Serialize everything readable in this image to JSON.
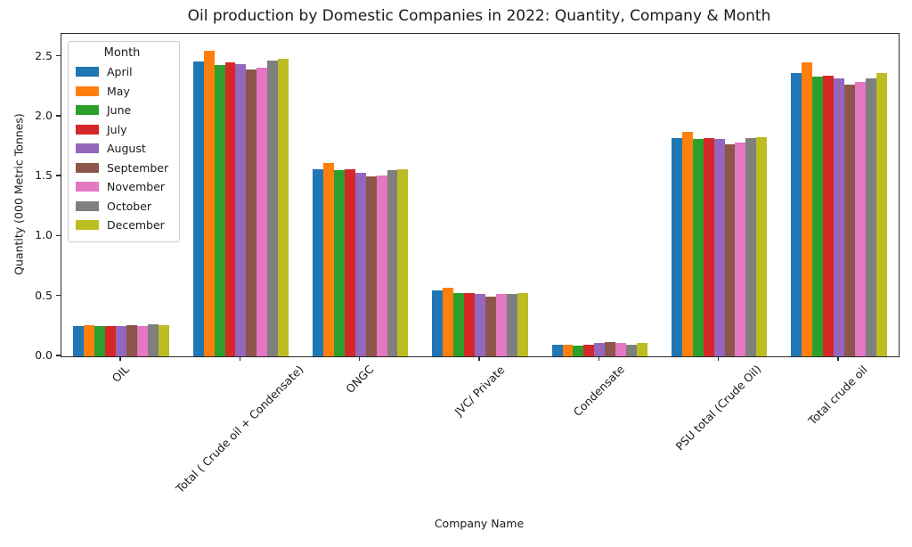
{
  "title": "Oil production by Domestic Companies in 2022: Quantity, Company & Month",
  "chart_data": {
    "type": "bar",
    "title": "Oil production by Domestic Companies in 2022: Quantity, Company & Month",
    "xlabel": "Company Name",
    "ylabel": "Quantity (000 Metric Tonnes)",
    "legend_title": "Month",
    "legend_position": "upper left",
    "grid": false,
    "x_tick_rotation": 45,
    "ylim": [
      0,
      2.69
    ],
    "yticks": [
      0.0,
      0.5,
      1.0,
      1.5,
      2.0,
      2.5
    ],
    "ytick_labels": [
      "0.0",
      "0.5",
      "1.0",
      "1.5",
      "2.0",
      "2.5"
    ],
    "categories": [
      "OIL",
      "Total ( Crude oil + Condensate)",
      "ONGC",
      "JVC/ Private",
      "Condensate",
      "PSU total (Crude Oil)",
      "Total crude oil"
    ],
    "series": [
      {
        "name": "April",
        "color": "#1f77b4",
        "values": [
          0.25,
          2.46,
          1.56,
          0.55,
          0.1,
          1.82,
          2.36
        ]
      },
      {
        "name": "May",
        "color": "#ff7f0e",
        "values": [
          0.26,
          2.55,
          1.61,
          0.57,
          0.1,
          1.87,
          2.45
        ]
      },
      {
        "name": "June",
        "color": "#2ca02c",
        "values": [
          0.25,
          2.43,
          1.55,
          0.53,
          0.09,
          1.81,
          2.33
        ]
      },
      {
        "name": "July",
        "color": "#d62728",
        "values": [
          0.25,
          2.45,
          1.56,
          0.53,
          0.1,
          1.82,
          2.34
        ]
      },
      {
        "name": "August",
        "color": "#9467bd",
        "values": [
          0.25,
          2.44,
          1.53,
          0.52,
          0.11,
          1.81,
          2.32
        ]
      },
      {
        "name": "September",
        "color": "#8c564b",
        "values": [
          0.26,
          2.39,
          1.5,
          0.5,
          0.12,
          1.77,
          2.27
        ]
      },
      {
        "name": "November",
        "color": "#e377c2",
        "values": [
          0.25,
          2.41,
          1.51,
          0.52,
          0.11,
          1.78,
          2.29
        ]
      },
      {
        "name": "October",
        "color": "#7f7f7f",
        "values": [
          0.27,
          2.47,
          1.55,
          0.52,
          0.1,
          1.82,
          2.32
        ]
      },
      {
        "name": "December",
        "color": "#bcbd22",
        "values": [
          0.26,
          2.48,
          1.56,
          0.53,
          0.11,
          1.83,
          2.36
        ]
      }
    ]
  }
}
